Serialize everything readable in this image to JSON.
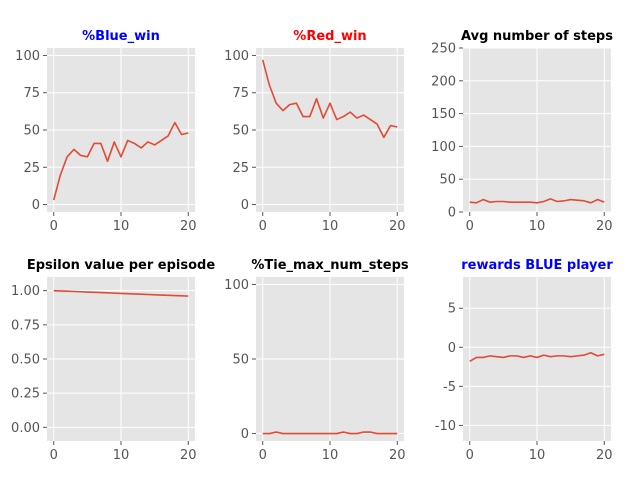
{
  "chart_data": [
    {
      "type": "line",
      "title": "%Blue_win",
      "title_color": "#0000ff",
      "xlabel": "",
      "ylabel": "",
      "xlim": [
        -1,
        21
      ],
      "ylim": [
        -5,
        105
      ],
      "xticks": [
        0,
        10,
        20
      ],
      "yticks": [
        0,
        25,
        50,
        75,
        100
      ],
      "x": [
        0,
        1,
        2,
        3,
        4,
        5,
        6,
        7,
        8,
        9,
        10,
        11,
        12,
        13,
        14,
        15,
        16,
        17,
        18,
        19,
        20
      ],
      "values": [
        3,
        20,
        32,
        37,
        33,
        32,
        41,
        41,
        29,
        42,
        32,
        43,
        41,
        38,
        42,
        40,
        43,
        46,
        55,
        47,
        48
      ],
      "line_color": "#e24a33",
      "grid": true
    },
    {
      "type": "line",
      "title": "%Red_win",
      "title_color": "#ff0000",
      "xlabel": "",
      "ylabel": "",
      "xlim": [
        -1,
        21
      ],
      "ylim": [
        -5,
        105
      ],
      "xticks": [
        0,
        10,
        20
      ],
      "yticks": [
        0,
        25,
        50,
        75,
        100
      ],
      "x": [
        0,
        1,
        2,
        3,
        4,
        5,
        6,
        7,
        8,
        9,
        10,
        11,
        12,
        13,
        14,
        15,
        16,
        17,
        18,
        19,
        20
      ],
      "values": [
        97,
        80,
        68,
        63,
        67,
        68,
        59,
        59,
        71,
        58,
        68,
        57,
        59,
        62,
        58,
        60,
        57,
        54,
        45,
        53,
        52
      ],
      "line_color": "#e24a33",
      "grid": true
    },
    {
      "type": "line",
      "title": "Avg number of steps",
      "title_color": "#000000",
      "xlabel": "",
      "ylabel": "",
      "xlim": [
        -1,
        21
      ],
      "ylim": [
        0,
        250
      ],
      "xticks": [
        0,
        10,
        20
      ],
      "yticks": [
        0,
        50,
        100,
        150,
        200,
        250
      ],
      "x": [
        0,
        1,
        2,
        3,
        4,
        5,
        6,
        7,
        8,
        9,
        10,
        11,
        12,
        13,
        14,
        15,
        16,
        17,
        18,
        19,
        20
      ],
      "values": [
        15,
        14,
        19,
        15,
        16,
        16,
        15,
        15,
        15,
        15,
        14,
        16,
        20,
        16,
        17,
        19,
        18,
        17,
        14,
        19,
        15
      ],
      "line_color": "#e24a33",
      "grid": true
    },
    {
      "type": "line",
      "title": "Epsilon value per episode",
      "title_color": "#000000",
      "xlabel": "",
      "ylabel": "",
      "xlim": [
        -1,
        21
      ],
      "ylim": [
        -0.1,
        1.1
      ],
      "xticks": [
        0,
        10,
        20
      ],
      "yticks": [
        0.0,
        0.25,
        0.5,
        0.75,
        1.0
      ],
      "ytick_labels": [
        "0.00",
        "0.25",
        "0.50",
        "0.75",
        "1.00"
      ],
      "x": [
        0,
        1,
        2,
        3,
        4,
        5,
        6,
        7,
        8,
        9,
        10,
        11,
        12,
        13,
        14,
        15,
        16,
        17,
        18,
        19,
        20
      ],
      "values": [
        1.0,
        0.998,
        0.996,
        0.994,
        0.992,
        0.99,
        0.988,
        0.986,
        0.984,
        0.982,
        0.98,
        0.978,
        0.976,
        0.974,
        0.972,
        0.97,
        0.968,
        0.966,
        0.964,
        0.962,
        0.96
      ],
      "line_color": "#e24a33",
      "grid": true
    },
    {
      "type": "line",
      "title": "%Tie_max_num_steps",
      "title_color": "#000000",
      "xlabel": "",
      "ylabel": "",
      "xlim": [
        -1,
        21
      ],
      "ylim": [
        -5,
        105
      ],
      "xticks": [
        0,
        10,
        20
      ],
      "yticks": [
        0,
        50,
        100
      ],
      "x": [
        0,
        1,
        2,
        3,
        4,
        5,
        6,
        7,
        8,
        9,
        10,
        11,
        12,
        13,
        14,
        15,
        16,
        17,
        18,
        19,
        20
      ],
      "values": [
        0,
        0,
        1,
        0,
        0,
        0,
        0,
        0,
        0,
        0,
        0,
        0,
        1,
        0,
        0,
        1,
        1,
        0,
        0,
        0,
        0
      ],
      "line_color": "#e24a33",
      "grid": true
    },
    {
      "type": "line",
      "title": "rewards BLUE player",
      "title_color": "#0000ff",
      "xlabel": "",
      "ylabel": "",
      "xlim": [
        -1,
        21
      ],
      "ylim": [
        -12,
        9
      ],
      "xticks": [
        0,
        10,
        20
      ],
      "yticks": [
        -10,
        -5,
        0,
        5
      ],
      "x": [
        0,
        1,
        2,
        3,
        4,
        5,
        6,
        7,
        8,
        9,
        10,
        11,
        12,
        13,
        14,
        15,
        16,
        17,
        18,
        19,
        20
      ],
      "values": [
        -1.8,
        -1.3,
        -1.3,
        -1.1,
        -1.2,
        -1.3,
        -1.1,
        -1.1,
        -1.3,
        -1.1,
        -1.3,
        -1.0,
        -1.2,
        -1.1,
        -1.1,
        -1.2,
        -1.1,
        -1.0,
        -0.7,
        -1.1,
        -0.9
      ],
      "line_color": "#e24a33",
      "grid": true
    }
  ]
}
